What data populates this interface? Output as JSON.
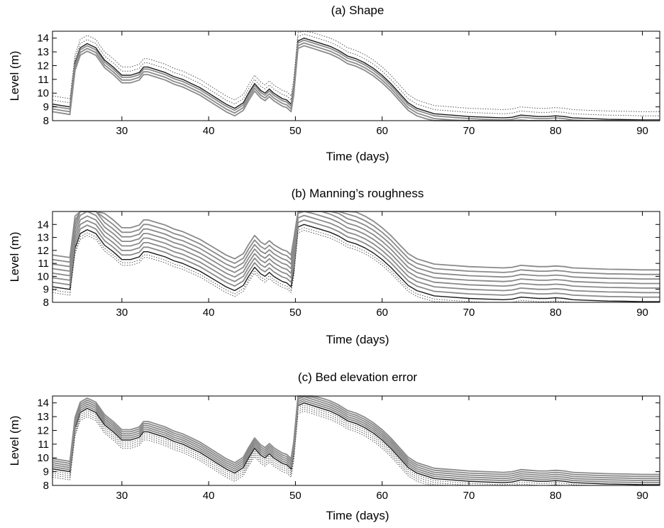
{
  "chart_data": [
    {
      "type": "line",
      "title": "(a) Shape",
      "xlabel": "Time (days)",
      "ylabel": "Level (m)",
      "xlim": [
        22,
        92
      ],
      "ylim": [
        8,
        14.5
      ],
      "xticks": [
        30,
        40,
        50,
        60,
        70,
        80,
        90
      ],
      "yticks": [
        8,
        9,
        10,
        11,
        12,
        13,
        14
      ],
      "grid": false,
      "x": [
        22,
        23,
        24,
        24.6,
        25.2,
        26,
        27,
        28,
        29,
        30,
        31,
        32,
        32.5,
        33,
        34,
        35,
        36,
        37,
        38,
        39,
        40,
        41,
        42,
        43,
        44,
        44.6,
        45.3,
        46,
        46.5,
        47,
        47.5,
        48,
        48.5,
        49,
        49.5,
        49.8,
        50.3,
        51,
        52,
        53,
        54,
        55,
        56,
        57,
        58,
        59,
        60,
        61,
        62,
        63,
        64,
        65,
        66,
        68,
        70,
        72,
        74,
        75,
        76,
        77,
        78,
        79,
        80,
        81,
        82,
        84,
        86,
        88,
        90,
        92
      ],
      "reference": [
        9.2,
        9.1,
        9.0,
        12.2,
        13.3,
        13.6,
        13.3,
        12.4,
        11.9,
        11.3,
        11.3,
        11.5,
        11.9,
        11.9,
        11.7,
        11.5,
        11.2,
        11.0,
        10.7,
        10.4,
        10.0,
        9.6,
        9.2,
        8.9,
        9.3,
        10.0,
        10.7,
        10.2,
        10.0,
        10.3,
        10.0,
        9.8,
        9.6,
        9.5,
        9.2,
        10.4,
        13.8,
        14.0,
        13.8,
        13.6,
        13.4,
        13.1,
        12.7,
        12.5,
        12.2,
        11.8,
        11.3,
        10.7,
        10.0,
        9.3,
        8.9,
        8.7,
        8.5,
        8.4,
        8.3,
        8.25,
        8.2,
        8.25,
        8.4,
        8.35,
        8.3,
        8.3,
        8.35,
        8.3,
        8.2,
        8.15,
        8.1,
        8.08,
        8.05,
        8.05
      ],
      "series_offsets": [
        {
          "style": "dotted",
          "offset": 0.6
        },
        {
          "style": "dotted",
          "offset": 0.3
        },
        {
          "style": "solid-dark",
          "offset": 0.0
        },
        {
          "style": "solid-gray",
          "offset": -0.15
        },
        {
          "style": "solid-gray",
          "offset": -0.35
        },
        {
          "style": "solid-gray",
          "offset": -0.55
        }
      ]
    },
    {
      "type": "line",
      "title": "(b) Manning’s roughness",
      "xlabel": "Time (days)",
      "ylabel": "Level (m)",
      "xlim": [
        22,
        92
      ],
      "ylim": [
        8,
        15
      ],
      "xticks": [
        30,
        40,
        50,
        60,
        70,
        80,
        90
      ],
      "yticks": [
        8,
        9,
        10,
        11,
        12,
        13,
        14
      ],
      "grid": false,
      "x": [
        22,
        23,
        24,
        24.6,
        25.2,
        26,
        27,
        28,
        29,
        30,
        31,
        32,
        32.5,
        33,
        34,
        35,
        36,
        37,
        38,
        39,
        40,
        41,
        42,
        43,
        44,
        44.6,
        45.3,
        46,
        46.5,
        47,
        47.5,
        48,
        48.5,
        49,
        49.5,
        49.8,
        50.3,
        51,
        52,
        53,
        54,
        55,
        56,
        57,
        58,
        59,
        60,
        61,
        62,
        63,
        64,
        65,
        66,
        68,
        70,
        72,
        74,
        75,
        76,
        77,
        78,
        79,
        80,
        81,
        82,
        84,
        86,
        88,
        90,
        92
      ],
      "reference": [
        9.2,
        9.1,
        9.0,
        12.2,
        13.3,
        13.6,
        13.3,
        12.4,
        11.9,
        11.3,
        11.3,
        11.5,
        11.9,
        11.9,
        11.7,
        11.5,
        11.2,
        11.0,
        10.7,
        10.4,
        10.0,
        9.6,
        9.2,
        8.9,
        9.3,
        10.0,
        10.7,
        10.2,
        10.0,
        10.3,
        10.0,
        9.8,
        9.6,
        9.5,
        9.2,
        10.4,
        13.8,
        14.0,
        13.8,
        13.6,
        13.4,
        13.1,
        12.7,
        12.5,
        12.2,
        11.8,
        11.3,
        10.7,
        10.0,
        9.3,
        8.9,
        8.7,
        8.5,
        8.4,
        8.3,
        8.25,
        8.2,
        8.25,
        8.4,
        8.35,
        8.3,
        8.3,
        8.35,
        8.3,
        8.2,
        8.15,
        8.1,
        8.08,
        8.05,
        8.05
      ],
      "series_offsets": [
        {
          "style": "dotted",
          "offset": -0.45
        },
        {
          "style": "dotted",
          "offset": -0.25
        },
        {
          "style": "solid-dark",
          "offset": 0.0
        },
        {
          "style": "solid-gray",
          "offset": 0.35
        },
        {
          "style": "solid-gray",
          "offset": 0.7
        },
        {
          "style": "solid-gray",
          "offset": 1.05
        },
        {
          "style": "solid-gray",
          "offset": 1.4
        },
        {
          "style": "solid-gray",
          "offset": 1.75
        },
        {
          "style": "solid-gray",
          "offset": 2.1
        },
        {
          "style": "solid-gray",
          "offset": 2.45
        }
      ]
    },
    {
      "type": "line",
      "title": "(c) Bed elevation error",
      "xlabel": "Time (days)",
      "ylabel": "Level (m)",
      "xlim": [
        22,
        92
      ],
      "ylim": [
        8,
        14.5
      ],
      "xticks": [
        30,
        40,
        50,
        60,
        70,
        80,
        90
      ],
      "yticks": [
        8,
        9,
        10,
        11,
        12,
        13,
        14
      ],
      "grid": false,
      "x": [
        22,
        23,
        24,
        24.6,
        25.2,
        26,
        27,
        28,
        29,
        30,
        31,
        32,
        32.5,
        33,
        34,
        35,
        36,
        37,
        38,
        39,
        40,
        41,
        42,
        43,
        44,
        44.6,
        45.3,
        46,
        46.5,
        47,
        47.5,
        48,
        48.5,
        49,
        49.5,
        49.8,
        50.3,
        51,
        52,
        53,
        54,
        55,
        56,
        57,
        58,
        59,
        60,
        61,
        62,
        63,
        64,
        65,
        66,
        68,
        70,
        72,
        74,
        75,
        76,
        77,
        78,
        79,
        80,
        81,
        82,
        84,
        86,
        88,
        90,
        92
      ],
      "reference": [
        9.2,
        9.1,
        9.0,
        12.2,
        13.3,
        13.6,
        13.3,
        12.4,
        11.9,
        11.3,
        11.3,
        11.5,
        11.9,
        11.9,
        11.7,
        11.5,
        11.2,
        11.0,
        10.7,
        10.4,
        10.0,
        9.6,
        9.2,
        8.9,
        9.3,
        10.0,
        10.7,
        10.2,
        10.0,
        10.3,
        10.0,
        9.8,
        9.6,
        9.5,
        9.2,
        10.4,
        13.8,
        14.0,
        13.8,
        13.6,
        13.4,
        13.1,
        12.7,
        12.5,
        12.2,
        11.8,
        11.3,
        10.7,
        10.0,
        9.3,
        8.9,
        8.7,
        8.5,
        8.4,
        8.3,
        8.25,
        8.2,
        8.25,
        8.4,
        8.35,
        8.3,
        8.3,
        8.35,
        8.3,
        8.2,
        8.15,
        8.1,
        8.08,
        8.05,
        8.05
      ],
      "series_offsets": [
        {
          "style": "dotted",
          "offset": -0.6
        },
        {
          "style": "dotted",
          "offset": -0.45
        },
        {
          "style": "dotted",
          "offset": -0.3
        },
        {
          "style": "dotted",
          "offset": -0.15
        },
        {
          "style": "solid-dark",
          "offset": 0.0
        },
        {
          "style": "solid-gray",
          "offset": 0.15
        },
        {
          "style": "solid-gray",
          "offset": 0.3
        },
        {
          "style": "solid-gray",
          "offset": 0.45
        },
        {
          "style": "solid-gray",
          "offset": 0.6
        },
        {
          "style": "solid-gray",
          "offset": 0.75
        }
      ]
    }
  ],
  "colors": {
    "frame": "#000000",
    "reference_line": "#1a1a1a",
    "gray_line": "#8a8a8a",
    "dotted_line": "#555555",
    "background": "#ffffff"
  }
}
